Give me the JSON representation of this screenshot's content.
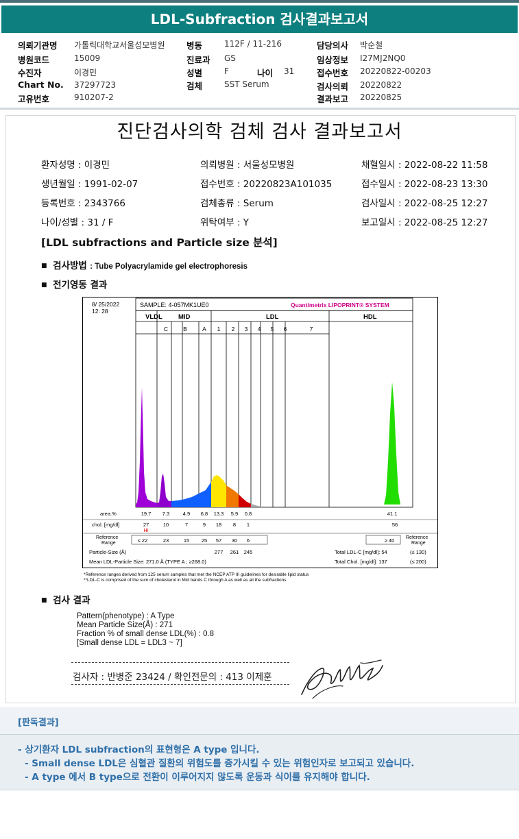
{
  "title": "LDL-Subfraction 검사결과보고서",
  "header": {
    "col1": [
      {
        "label": "의뢰기관명",
        "value": "가톨릭대학교서울성모병원"
      },
      {
        "label": "병원코드",
        "value": "15009"
      },
      {
        "label": "수진자",
        "value": "이경민"
      },
      {
        "label": "Chart No.",
        "value": "37297723"
      },
      {
        "label": "고유번호",
        "value": "910207-2"
      }
    ],
    "col2": [
      {
        "label": "병동",
        "value": "112F / 11-216"
      },
      {
        "label": "진료과",
        "value": "GS"
      },
      {
        "label": "성별",
        "value": "F"
      },
      {
        "label": "검체",
        "value": "SST Serum"
      }
    ],
    "age_label": "나이",
    "age_value": "31",
    "col3": [
      {
        "label": "담당의사",
        "value": "박순철"
      },
      {
        "label": "임상정보",
        "value": "I27MJ2NQ0"
      },
      {
        "label": "접수번호",
        "value": "20220822-00203"
      },
      {
        "label": "검사의뢰",
        "value": "20220822"
      },
      {
        "label": "결과보고",
        "value": "20220825"
      }
    ]
  },
  "report": {
    "title": "진단검사의학 검체 검사 결과보고서",
    "patient": [
      [
        "환자성명 : 이경민",
        "의뢰병원 : 서울성모병원",
        "채혈일시 : 2022-08-22 11:58"
      ],
      [
        "생년월일 : 1991-02-07",
        "접수번호 : 20220823A101035",
        "접수일시 : 2022-08-23 13:30"
      ],
      [
        "등록번호 : 2343766",
        "검체종류 : Serum",
        "검사일시 : 2022-08-25 12:27"
      ],
      [
        "나이/성별 : 31 / F",
        "위탁여부 : Y",
        "보고일시 : 2022-08-25 12:27"
      ]
    ],
    "section_title": "[LDL subfractions and Particle size 분석]",
    "method_label": "검사방법",
    "method_value": ": Tube Polyacrylamide gel electrophoresis",
    "electro_label": "전기영동 결과",
    "result_label": "검사 결과",
    "results": [
      "Pattern(phenotype) : A Type",
      "Mean Particle Size(Å) : 271",
      "Fraction % of small dense LDL(%) : 0.8",
      "[Small dense LDL = LDL3 ~ 7]"
    ],
    "inspector": "검사자 : 반병준  23424  /  확인전문의 : 413  이제훈",
    "signature": "signature"
  },
  "chart_data": {
    "type": "area",
    "date": "8/ 25/2022",
    "time": "12: 28",
    "sample": "SAMPLE:   4-057MK1UE0",
    "system": "Quantimetrix LIPOPRINT® SYSTEM",
    "groups": [
      "VLDL",
      "MID",
      "LDL",
      "HDL"
    ],
    "bands": [
      "C",
      "B",
      "A",
      "1",
      "2",
      "3",
      "4",
      "5",
      "6",
      "7"
    ],
    "area_label": "area.%",
    "area": [
      "19.7",
      "7.3",
      "4.9",
      "6.8",
      "13.3",
      "5.9",
      "0.8",
      "41.1"
    ],
    "chol_label": "chol. [mg/dl]",
    "chol": [
      "27",
      "10",
      "7",
      "9",
      "18",
      "8",
      "1",
      "56"
    ],
    "flag": "HI",
    "ref_label": "Reference Range",
    "ref": [
      "≤ 22",
      "23",
      "15",
      "25",
      "57",
      "30",
      "6",
      "≥ 40"
    ],
    "ref_right": "Reference Range",
    "particle_label": "Particle-Size (Å)",
    "particle": [
      "277",
      "261",
      "245"
    ],
    "mean_label": "Mean LDL-Particle Size:   271.0 Å   (TYPE A ; ≥268.0)",
    "total_ldl": "Total LDL-C [mg/dl]:  54",
    "total_ldl_ref": "(≤ 130)",
    "total_chol": "Total Chol. [mg/dl]:   137",
    "total_chol_ref": "(≤ 200)",
    "footnote1": "*Reference ranges derived from 125 serum samples that met the NCEP ATP III guidelines for desirable lipid status",
    "footnote2": "**LDL-C is comprised of the sum of cholesterol in Mid bands C through A as well as all the subfractions",
    "colors": {
      "vldl": "#a000d8",
      "mid": "#1060ff",
      "ldl1": "#ffe600",
      "ldl2": "#f07800",
      "ldl3": "#d00000",
      "hdl": "#22dd00"
    }
  },
  "judgement": {
    "title": "[판독결과]",
    "lines": [
      "- 상기환자 LDL subfraction의 표현형은 A type 입니다.",
      "-  Small dense LDL은 심혈관 질환의 위험도를 증가시킬 수 있는 위험인자로 보고되고 있습니다.",
      "-  A type 에서 B type으로 전환이 이루어지지 않도록 운동과 식이를 유지해야 합니다."
    ]
  }
}
